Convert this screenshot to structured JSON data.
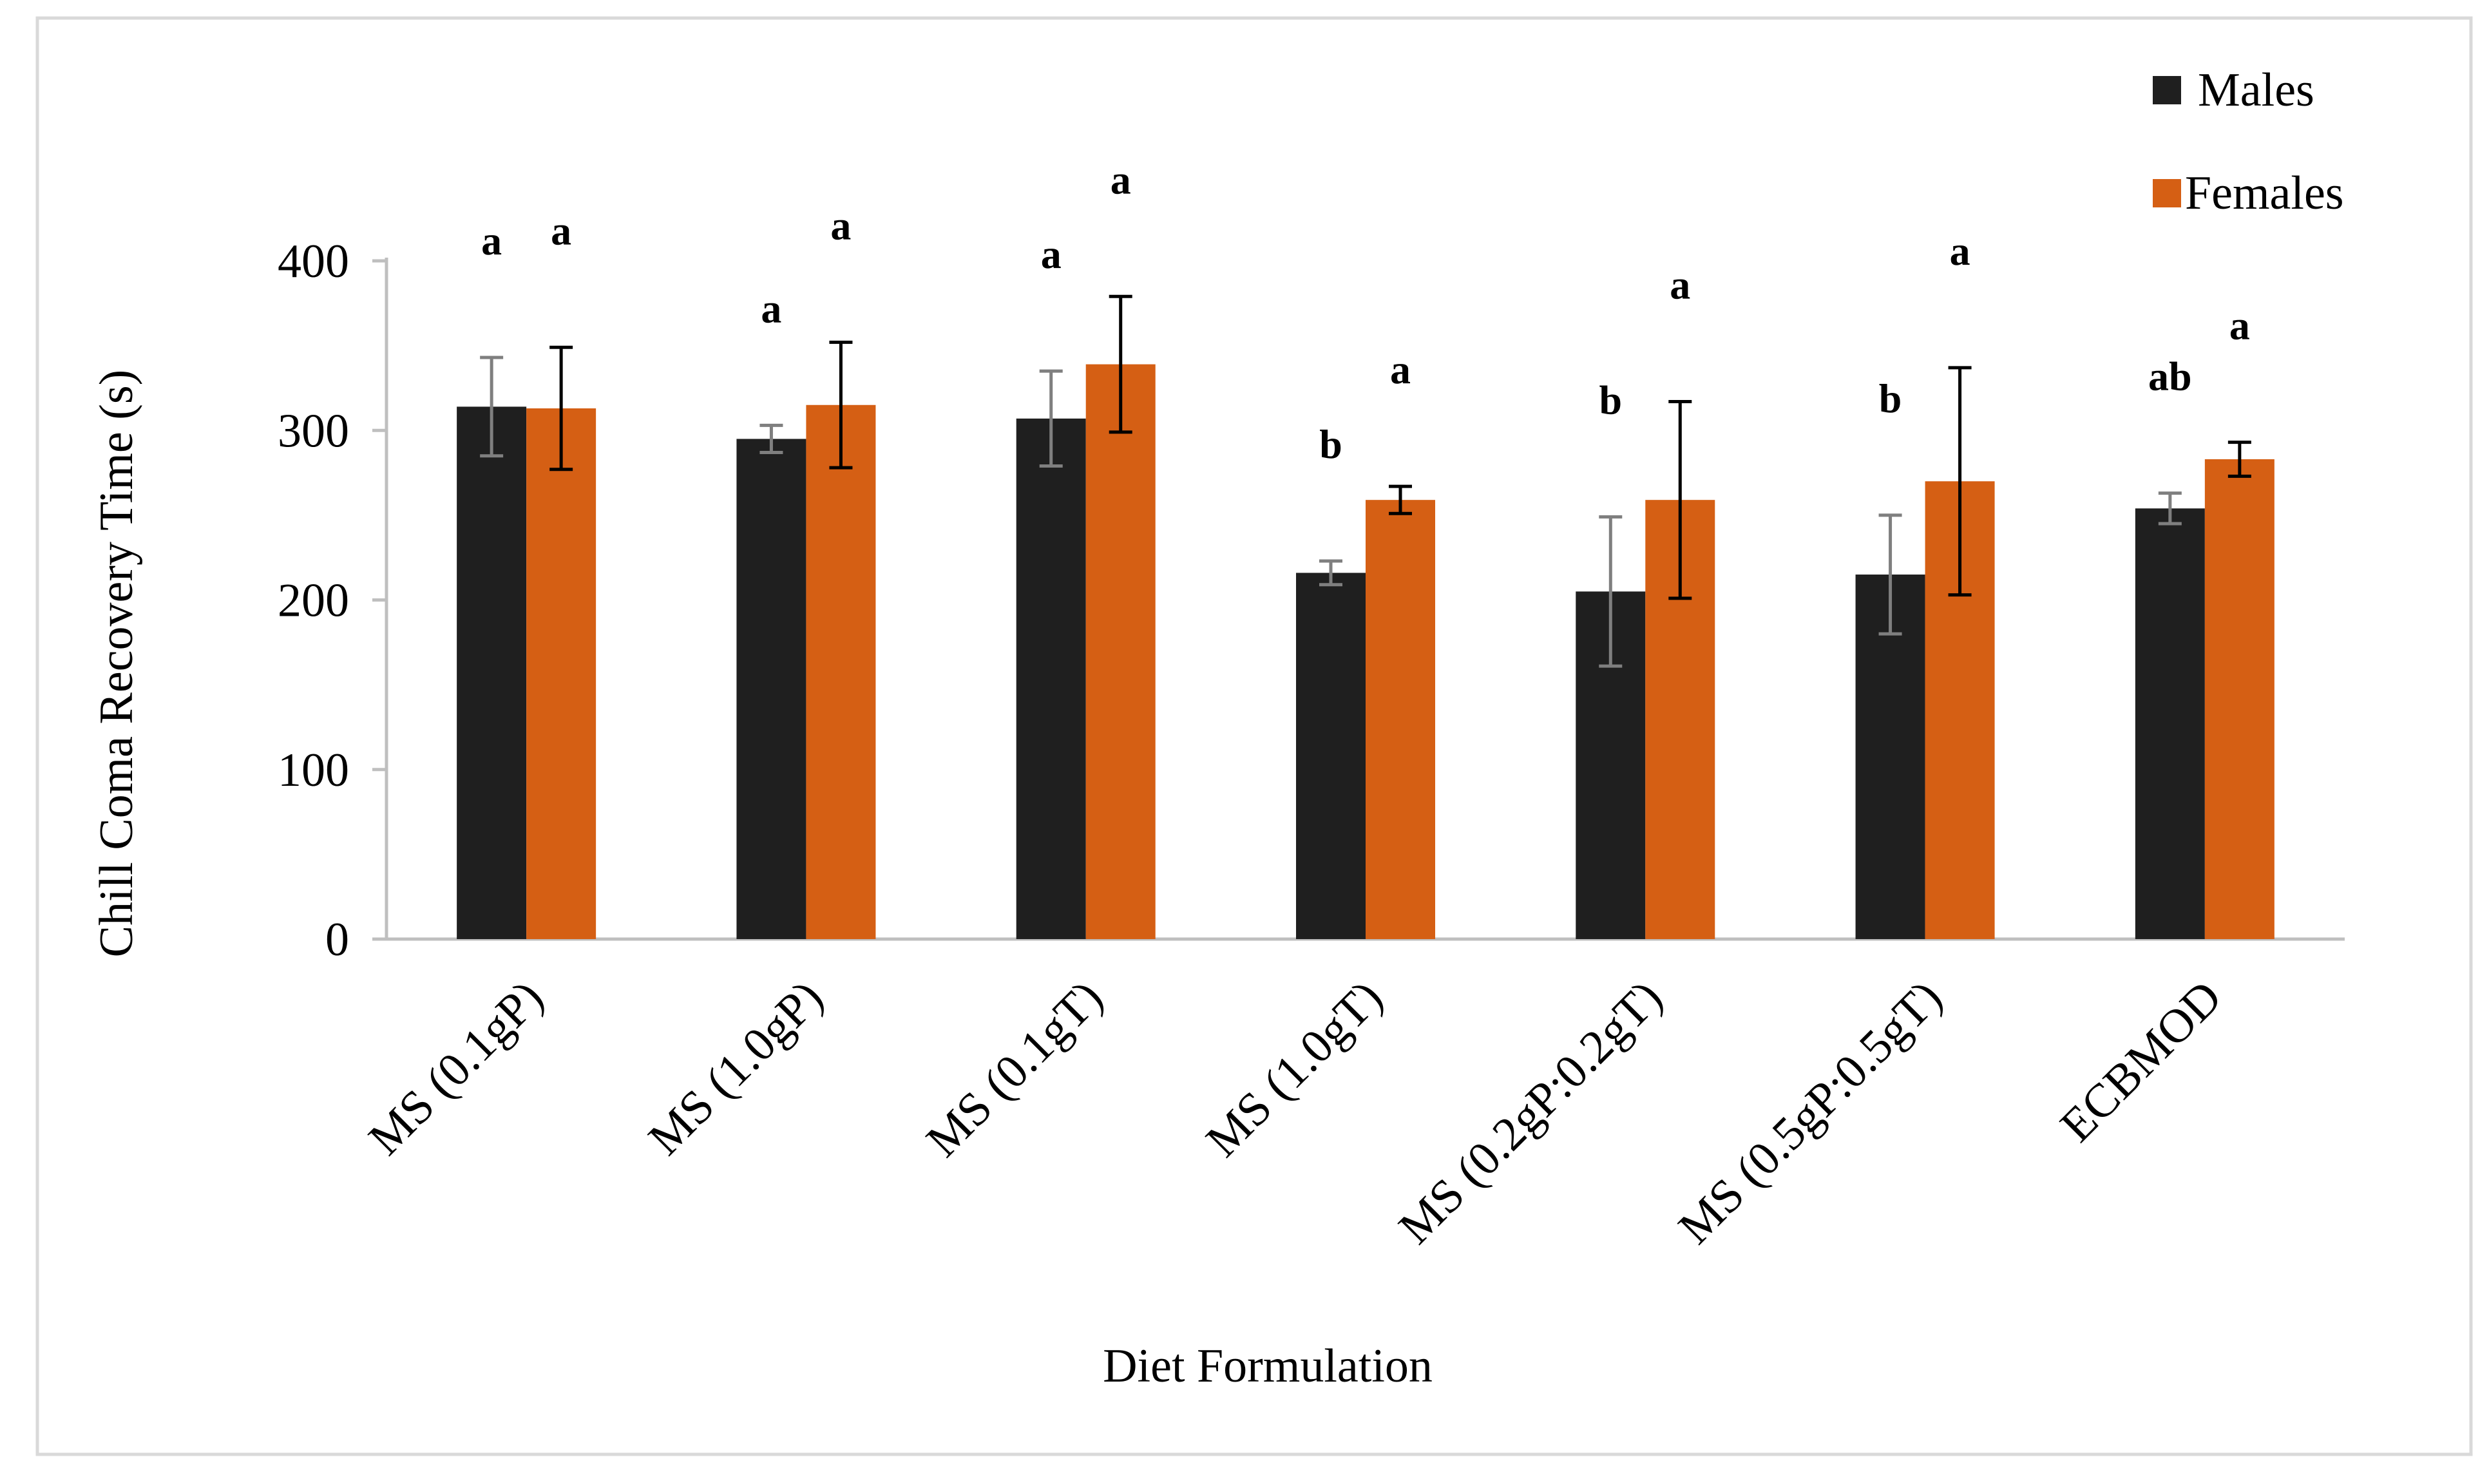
{
  "chart_data": {
    "type": "bar",
    "title": "",
    "xlabel": "Diet Formulation",
    "ylabel": "Chill Coma Recovery Time (s)",
    "ylim": [
      0,
      400
    ],
    "yticks": [
      0,
      100,
      200,
      300,
      400
    ],
    "grid": false,
    "legend_position": "top-right",
    "categories": [
      "MS (0.1gP)",
      "MS (1.0gP)",
      "MS (0.1gT)",
      "MS (1.0gT)",
      "MS (0.2gP:0.2gT)",
      "MS (0.5gP:0.5gT)",
      "ECBMOD"
    ],
    "series": [
      {
        "name": "Males",
        "color": "#1f1f1f",
        "error_color": "#7f7f7f",
        "values": [
          314,
          295,
          307,
          216,
          205,
          215,
          254
        ],
        "errors": [
          29,
          8,
          28,
          7,
          44,
          35,
          9
        ],
        "significance": [
          "a",
          "a",
          "a",
          "b",
          "b",
          "b",
          "ab"
        ]
      },
      {
        "name": "Females",
        "color": "#d55f14",
        "error_color": "#000000",
        "values": [
          313,
          315,
          339,
          259,
          259,
          270,
          283
        ],
        "errors": [
          36,
          37,
          40,
          8,
          58,
          67,
          10
        ],
        "significance": [
          "a",
          "a",
          "a",
          "a",
          "a",
          "a",
          "a"
        ]
      }
    ]
  }
}
